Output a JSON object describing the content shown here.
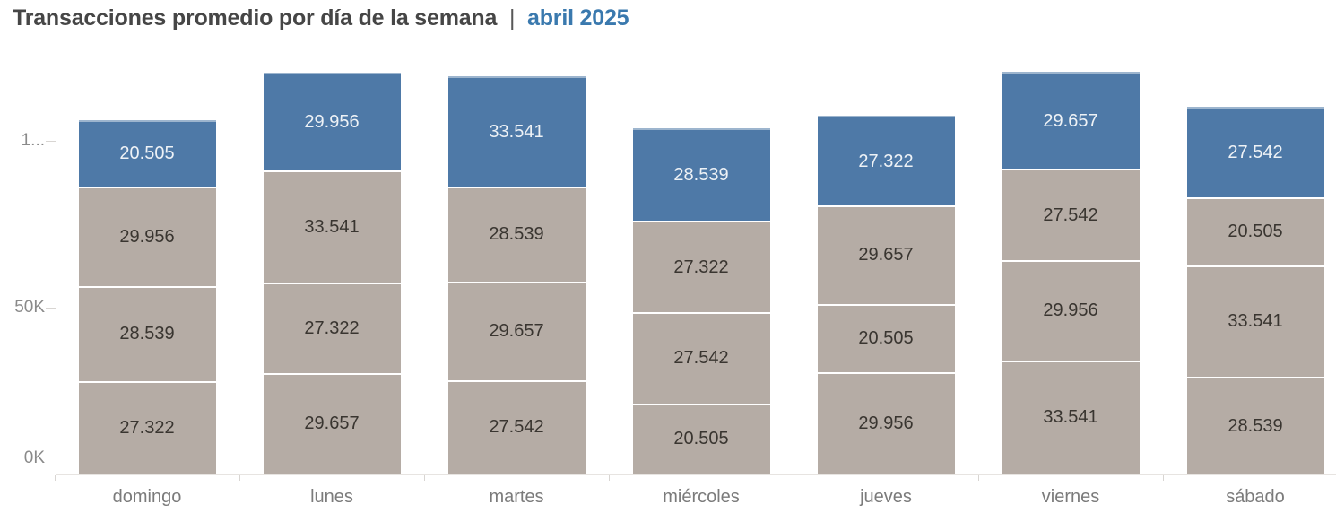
{
  "title": {
    "main": "Transacciones promedio por día de la semana",
    "separator": "|",
    "highlight": "abril 2025"
  },
  "colors": {
    "highlight_segment": "#4e79a7",
    "regular_segment": "#b5aca5",
    "title_text": "#464646",
    "title_highlight": "#3a79ae",
    "axis_text": "#8a8a8a",
    "day_label_text": "#7b7b7b",
    "label_on_highlight": "#eef2f6",
    "label_on_regular": "#393530"
  },
  "chart_data": {
    "type": "bar",
    "stacked": true,
    "title": "Transacciones promedio por día de la semana | abril 2025",
    "xlabel": "",
    "ylabel": "",
    "legend": "none",
    "grid": "off",
    "ylim": [
      0,
      127000
    ],
    "y_ticks": [
      {
        "label": "0K",
        "value": 0
      },
      {
        "label": "50K",
        "value": 50000
      },
      {
        "label": "1...",
        "value": 100000
      }
    ],
    "categories": [
      "domingo",
      "lunes",
      "martes",
      "miércoles",
      "jueves",
      "viernes",
      "sábado"
    ],
    "bars": [
      {
        "category": "domingo",
        "segments_bottom_to_top": [
          {
            "display": "27.322",
            "value": 27322,
            "role": "regular"
          },
          {
            "display": "28.539",
            "value": 28539,
            "role": "regular"
          },
          {
            "display": "29.956",
            "value": 29956,
            "role": "regular"
          },
          {
            "display": "20.505",
            "value": 20505,
            "role": "highlight"
          }
        ]
      },
      {
        "category": "lunes",
        "segments_bottom_to_top": [
          {
            "display": "29.657",
            "value": 29657,
            "role": "regular"
          },
          {
            "display": "27.322",
            "value": 27322,
            "role": "regular"
          },
          {
            "display": "33.541",
            "value": 33541,
            "role": "regular"
          },
          {
            "display": "29.956",
            "value": 29956,
            "role": "highlight"
          }
        ]
      },
      {
        "category": "martes",
        "segments_bottom_to_top": [
          {
            "display": "27.542",
            "value": 27542,
            "role": "regular"
          },
          {
            "display": "29.657",
            "value": 29657,
            "role": "regular"
          },
          {
            "display": "28.539",
            "value": 28539,
            "role": "regular"
          },
          {
            "display": "33.541",
            "value": 33541,
            "role": "highlight"
          }
        ]
      },
      {
        "category": "miércoles",
        "segments_bottom_to_top": [
          {
            "display": "20.505",
            "value": 20505,
            "role": "regular"
          },
          {
            "display": "27.542",
            "value": 27542,
            "role": "regular"
          },
          {
            "display": "27.322",
            "value": 27322,
            "role": "regular"
          },
          {
            "display": "28.539",
            "value": 28539,
            "role": "highlight"
          }
        ]
      },
      {
        "category": "jueves",
        "segments_bottom_to_top": [
          {
            "display": "29.956",
            "value": 29956,
            "role": "regular"
          },
          {
            "display": "20.505",
            "value": 20505,
            "role": "regular"
          },
          {
            "display": "29.657",
            "value": 29657,
            "role": "regular"
          },
          {
            "display": "27.322",
            "value": 27322,
            "role": "highlight"
          }
        ]
      },
      {
        "category": "viernes",
        "segments_bottom_to_top": [
          {
            "display": "33.541",
            "value": 33541,
            "role": "regular"
          },
          {
            "display": "29.956",
            "value": 29956,
            "role": "regular"
          },
          {
            "display": "27.542",
            "value": 27542,
            "role": "regular"
          },
          {
            "display": "29.657",
            "value": 29657,
            "role": "highlight"
          }
        ]
      },
      {
        "category": "sábado",
        "segments_bottom_to_top": [
          {
            "display": "28.539",
            "value": 28539,
            "role": "regular"
          },
          {
            "display": "33.541",
            "value": 33541,
            "role": "regular"
          },
          {
            "display": "20.505",
            "value": 20505,
            "role": "regular"
          },
          {
            "display": "27.542",
            "value": 27542,
            "role": "highlight"
          }
        ]
      }
    ]
  }
}
